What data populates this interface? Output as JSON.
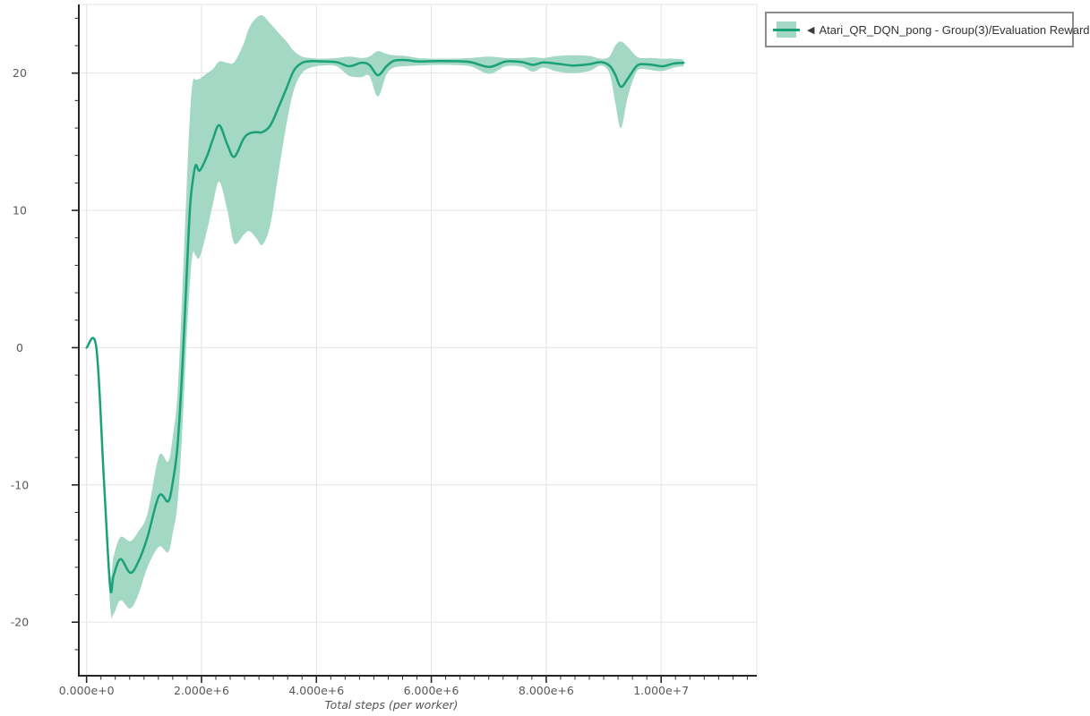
{
  "page": {
    "background": "#ffffff"
  },
  "legend": {
    "toggle_icon": "◀",
    "label": "Atari_QR_DQN_pong - Group(3)/Evaluation Reward",
    "line_color": "#1aa179",
    "band_color": "#a2d8c4"
  },
  "chart_data": {
    "type": "line",
    "title": "",
    "xlabel": "Total steps (per worker)",
    "ylabel": "",
    "grid": true,
    "legend_position": "top-right-outside",
    "xlim": [
      -135000,
      11665000
    ],
    "ylim": [
      -23.9,
      25.0
    ],
    "x_ticks": [
      {
        "value": 0,
        "label": "0.000e+0"
      },
      {
        "value": 2000000,
        "label": "2.000e+6"
      },
      {
        "value": 4000000,
        "label": "4.000e+6"
      },
      {
        "value": 6000000,
        "label": "6.000e+6"
      },
      {
        "value": 8000000,
        "label": "8.000e+6"
      },
      {
        "value": 10000000,
        "label": "1.000e+7"
      }
    ],
    "x_minor_step": 250000,
    "y_ticks": [
      {
        "value": -20,
        "label": "-20"
      },
      {
        "value": -10,
        "label": "-10"
      },
      {
        "value": 0,
        "label": "0"
      },
      {
        "value": 10,
        "label": "10"
      },
      {
        "value": 20,
        "label": "20"
      }
    ],
    "y_minor_step": 2,
    "colors": {
      "line": "#1aa179",
      "band": "#a2d8c4",
      "grid": "#e4e4e4",
      "spine": "#262626",
      "tick_label": "#595959"
    },
    "series": [
      {
        "name": "Atari_QR_DQN_pong - Group(3)/Evaluation Reward",
        "color": "#1aa179",
        "band_color": "#a2d8c4",
        "x": [
          0,
          170000,
          300000,
          410000,
          470000,
          590000,
          760000,
          900000,
          1060000,
          1260000,
          1420000,
          1500000,
          1580000,
          1660000,
          1740000,
          1800000,
          1850000,
          1900000,
          1970000,
          2100000,
          2200000,
          2310000,
          2450000,
          2570000,
          2730000,
          2830000,
          2950000,
          3060000,
          3200000,
          3350000,
          3480000,
          3610000,
          3750000,
          3900000,
          4100000,
          4350000,
          4570000,
          4780000,
          4920000,
          5070000,
          5220000,
          5350000,
          5550000,
          5770000,
          6050000,
          6350000,
          6680000,
          7010000,
          7300000,
          7580000,
          7770000,
          7950000,
          8200000,
          8470000,
          8750000,
          8950000,
          9100000,
          9200000,
          9300000,
          9420000,
          9550000,
          9640000,
          9850000,
          10030000,
          10220000,
          10390000
        ],
        "mean": [
          0,
          0,
          -9.5,
          -17.4,
          -16.6,
          -15.4,
          -16.4,
          -15.6,
          -13.8,
          -10.8,
          -11.2,
          -9.8,
          -7.3,
          -2.0,
          5.1,
          10.2,
          12.2,
          13.3,
          12.9,
          14.0,
          15.2,
          16.2,
          14.8,
          13.9,
          15.2,
          15.6,
          15.7,
          15.7,
          16.2,
          17.6,
          18.9,
          20.2,
          20.75,
          20.87,
          20.85,
          20.8,
          20.5,
          20.75,
          20.6,
          19.85,
          20.5,
          20.9,
          20.95,
          20.85,
          20.87,
          20.87,
          20.8,
          20.45,
          20.85,
          20.8,
          20.6,
          20.78,
          20.68,
          20.55,
          20.65,
          20.8,
          20.55,
          19.9,
          19.0,
          19.6,
          20.4,
          20.65,
          20.6,
          20.5,
          20.7,
          20.75
        ],
        "lo": [
          0,
          0,
          -10.3,
          -18.8,
          -19.4,
          -18.4,
          -19.0,
          -18.0,
          -16.0,
          -14.5,
          -14.9,
          -13.5,
          -11.5,
          -6.5,
          0.5,
          4.8,
          6.9,
          6.7,
          6.6,
          8.6,
          10.5,
          12.1,
          10.0,
          7.6,
          8.2,
          8.5,
          8.0,
          7.5,
          9.0,
          13.0,
          16.3,
          18.8,
          20.0,
          20.4,
          20.55,
          20.5,
          19.8,
          19.7,
          19.8,
          18.3,
          19.9,
          20.4,
          20.5,
          20.55,
          20.6,
          20.6,
          20.5,
          19.95,
          20.5,
          20.45,
          20.1,
          20.4,
          20.1,
          20.0,
          20.15,
          20.55,
          20.0,
          17.9,
          16.0,
          18.3,
          19.9,
          20.3,
          20.2,
          20.15,
          20.4,
          20.5
        ],
        "hi": [
          0,
          0,
          -8.8,
          -16.4,
          -15.2,
          -13.8,
          -14.1,
          -13.4,
          -12.1,
          -7.9,
          -8.3,
          -6.5,
          -3.5,
          3.5,
          11.5,
          17.0,
          19.4,
          19.5,
          19.6,
          20.0,
          20.3,
          20.85,
          20.75,
          20.8,
          22.1,
          23.3,
          24.0,
          24.2,
          23.6,
          22.9,
          22.3,
          21.6,
          21.2,
          21.1,
          21.05,
          21.1,
          21.2,
          21.1,
          21.2,
          21.6,
          21.4,
          21.3,
          21.25,
          21.1,
          21.05,
          21.05,
          21.1,
          21.2,
          21.1,
          21.1,
          21.15,
          21.1,
          21.25,
          21.3,
          21.25,
          21.05,
          21.2,
          22.0,
          22.3,
          21.9,
          21.3,
          21.1,
          21.1,
          21.05,
          21.05,
          21.0
        ]
      }
    ]
  }
}
